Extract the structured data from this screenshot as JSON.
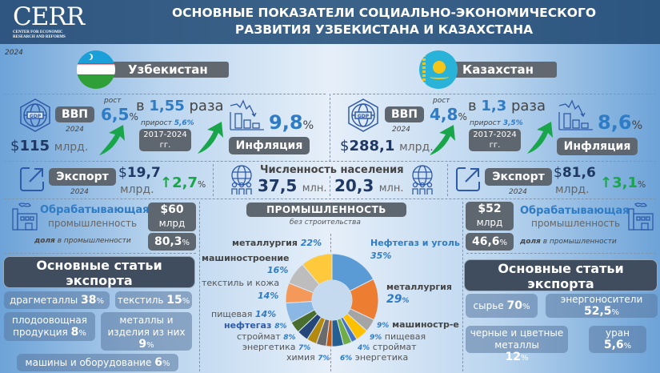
{
  "header": {
    "logo": "CERR",
    "logo_sub_line1": "CENTER FOR ECONOMIC",
    "logo_sub_line2": "RESEARCH AND REFORMS",
    "title_line1": "ОСНОВНЫЕ ПОКАЗАТЕЛИ СОЦИАЛЬНО-ЭКОНОМИЧЕСКОГО",
    "title_line2": "РАЗВИТИЯ УЗБЕКИСТАНА И КАЗАХСТАНА"
  },
  "year": "2024",
  "uzbekistan": {
    "name": "Узбекистан",
    "gdp_label": "ВВП",
    "gdp_year": "2024",
    "gdp_value": "115",
    "gdp_unit": "млрд.",
    "growth_label": "рост",
    "growth_value": "6,5",
    "multiplier_prefix": "в",
    "multiplier_value": "1,55",
    "multiplier_suffix": "раза",
    "increase_label": "прирост",
    "increase_value": "5,6%",
    "period": "2017-2024 гг.",
    "inflation_value": "9,8",
    "inflation_label": "Инфляция",
    "export_label": "Экспорт",
    "export_year": "2024",
    "export_value": "19,7",
    "export_unit": "млрд.",
    "export_growth": "2,7",
    "population_value": "37,5",
    "population_unit": "млн.",
    "manufacturing_title": "Обрабатывающая",
    "manufacturing_sub": "промышленность",
    "manufacturing_value": "$60",
    "manufacturing_unit": "млрд",
    "share_label_bold": "доля",
    "share_label_rest": "в промышленности",
    "share_value": "80,3",
    "exports_title": "Основные статьи экспорта",
    "export_items": [
      {
        "label": "драгметаллы",
        "value": "38"
      },
      {
        "label": "текстиль",
        "value": "15"
      },
      {
        "label": "плодоовощная продукция",
        "value": "8"
      },
      {
        "label": "металлы и изделия из них",
        "value": "9"
      },
      {
        "label": "машины и оборудование",
        "value": "6"
      }
    ]
  },
  "kazakhstan": {
    "name": "Казахстан",
    "gdp_label": "ВВП",
    "gdp_year": "2024",
    "gdp_value": "288,1",
    "gdp_unit": "млрд.",
    "growth_label": "рост",
    "growth_value": "4,8",
    "multiplier_prefix": "в",
    "multiplier_value": "1,3",
    "multiplier_suffix": "раза",
    "increase_label": "прирост",
    "increase_value": "3,5%",
    "period": "2017-2024 гг.",
    "inflation_value": "8,6",
    "inflation_label": "Инфляция",
    "export_label": "Экспорт",
    "export_year": "2024",
    "export_value": "81,6",
    "export_unit": "млрд.",
    "export_growth": "3,1",
    "population_value": "20,3",
    "population_unit": "млн.",
    "manufacturing_title": "Обрабатывающая",
    "manufacturing_sub": "промышленность",
    "manufacturing_value": "$52",
    "manufacturing_unit": "млрд",
    "share_label_bold": "доля",
    "share_label_rest": "в промышленности",
    "share_value": "46,6",
    "exports_title": "Основные статьи экспорта",
    "export_items": [
      {
        "label": "сырье",
        "value": "70"
      },
      {
        "label": "энергоносители",
        "value": "52,5"
      },
      {
        "label": "черные и цветные металлы",
        "value": "12"
      },
      {
        "label": "уран",
        "value": "5,6"
      }
    ]
  },
  "population_title": "Численность населения",
  "industry": {
    "title": "ПРОМЫШЛЕННОСТЬ",
    "subtitle": "без строительства"
  },
  "chart_data": {
    "type": "pie",
    "title": "ПРОМЫШЛЕННОСТЬ",
    "subtitle": "без строительства",
    "series": [
      {
        "name": "Узбекистан",
        "side": "left",
        "categories": [
          "металлургия",
          "машиностроение",
          "текстиль и кожа",
          "пищевая",
          "нефтегаз",
          "стройматы",
          "энергетика",
          "химия"
        ],
        "values": [
          22,
          16,
          14,
          14,
          8,
          8,
          7,
          7
        ],
        "colors": [
          "#ffc93c",
          "#bdbdbd",
          "#f4995a",
          "#8ab7e3",
          "#4a6e2e",
          "#26467a",
          "#b38a0d",
          "#6b6b6b"
        ]
      },
      {
        "name": "Казахстан",
        "side": "right",
        "categories": [
          "Нефтегаз и уголь",
          "металлургия",
          "машиностр-е",
          "пищевая",
          "строймат",
          "энергетика"
        ],
        "values": [
          35,
          29,
          9,
          9,
          4,
          6
        ],
        "colors": [
          "#5b9bd5",
          "#ed7d31",
          "#a5a5a5",
          "#ffc000",
          "#4472c4",
          "#70ad47"
        ]
      }
    ],
    "labels": {
      "left": [
        "металлургия 22%",
        "машиностроение 16%",
        "текстиль и кожа 14%",
        "пищевая 14%",
        "нефтегаз 8%",
        "стройматы 8%",
        "энергетика 7%",
        "химия 7%"
      ],
      "right": [
        "Нефтегаз и уголь 35%",
        "металлургия 29%",
        "9% машиностр-е",
        "9% пищевая",
        "4% строймат",
        "6% энергетика"
      ]
    }
  }
}
